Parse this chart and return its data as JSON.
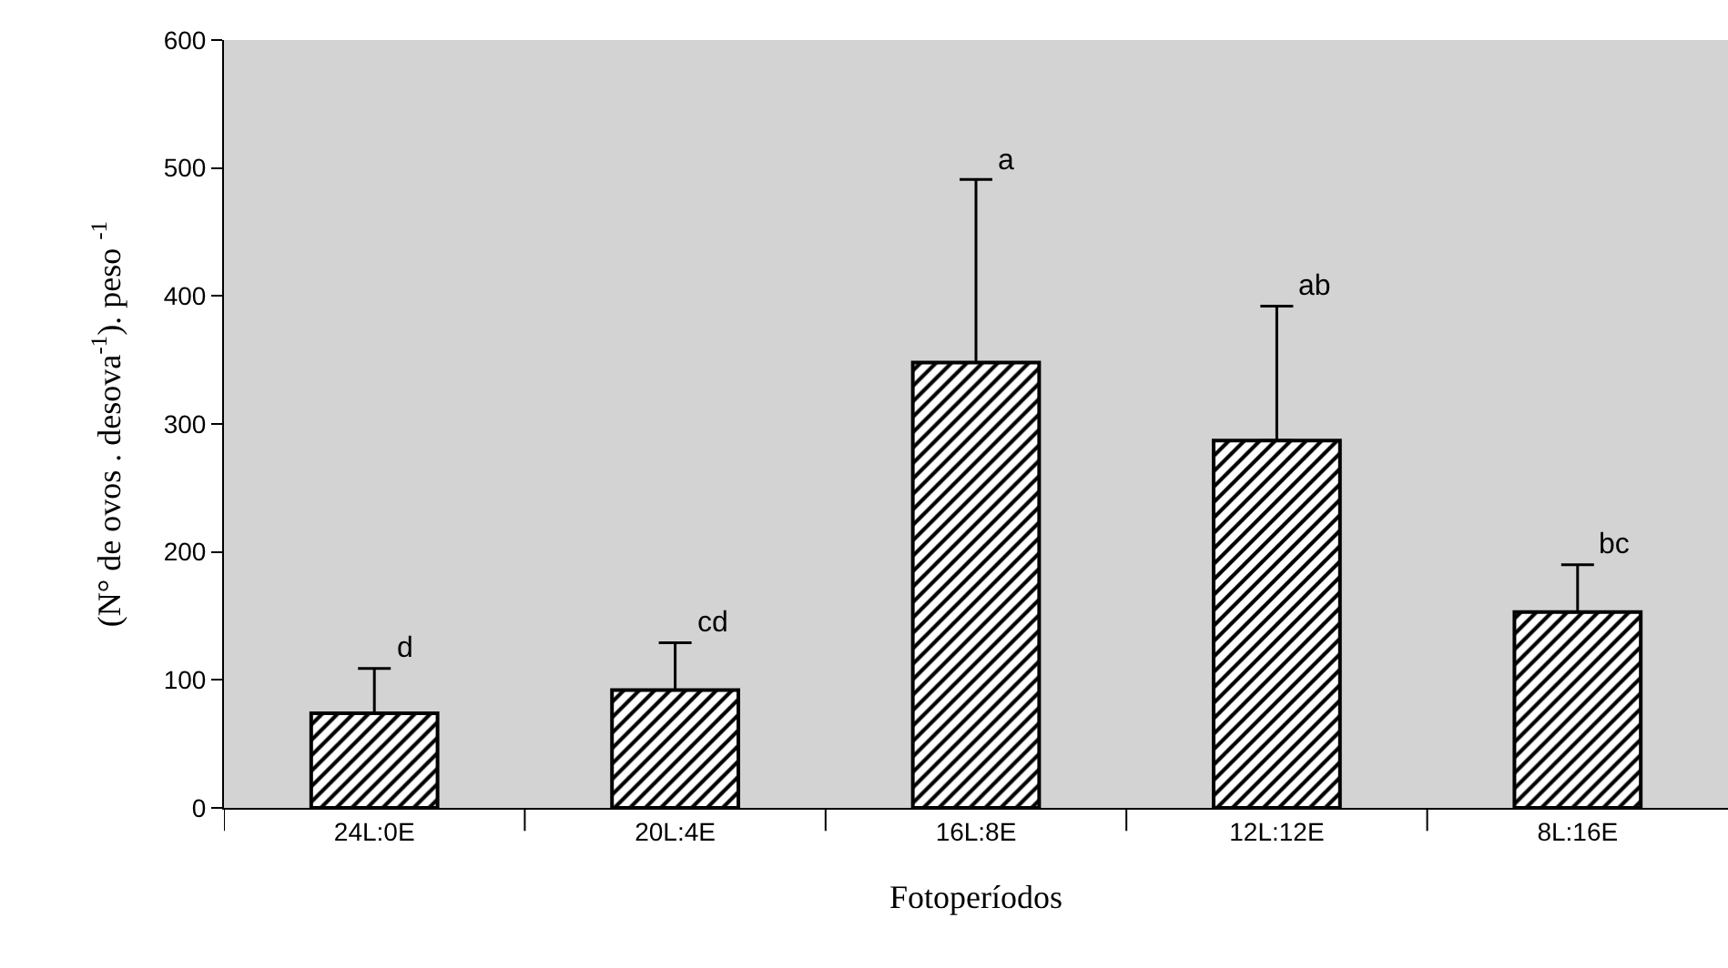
{
  "chart_data": {
    "type": "bar",
    "xlabel": "Fotoperíodos",
    "ylabel": "(N° de ovos . desova$^{-1}$). peso $^{-1}$",
    "categories": [
      "24L:0E",
      "20L:4E",
      "16L:8E",
      "12L:12E",
      "8L:16E"
    ],
    "values": [
      74,
      92,
      348,
      287,
      153
    ],
    "errors": [
      [
        74,
        109
      ],
      [
        92,
        129
      ],
      [
        348,
        491
      ],
      [
        287,
        392
      ],
      [
        153,
        190
      ]
    ],
    "color": "#000000",
    "ylim": [
      0,
      600
    ],
    "yticks": [
      0,
      100,
      200,
      300,
      400,
      500,
      600
    ],
    "grid": false,
    "annotations": [
      "d",
      "cd",
      "a",
      "ab",
      "bc"
    ]
  }
}
